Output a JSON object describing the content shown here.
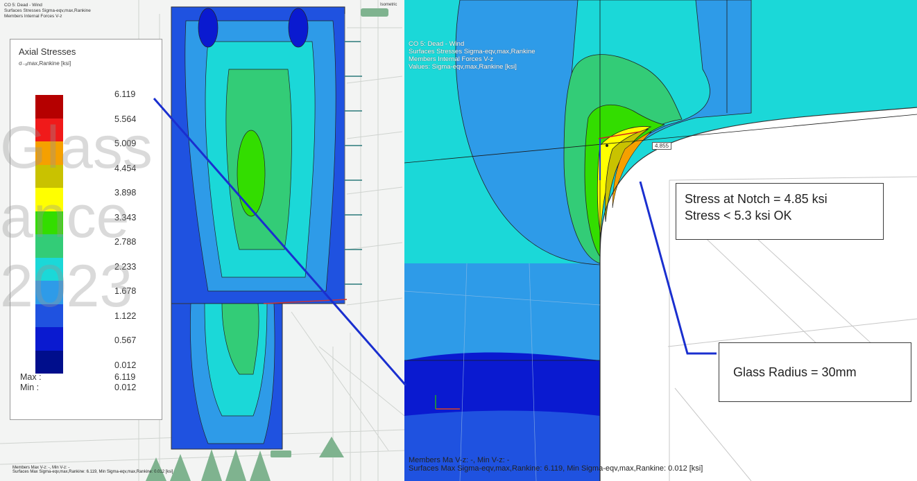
{
  "left_view": {
    "header_lines": [
      "CO 5: Dead - Wind",
      "Surfaces Stresses Sigma-eqv,max,Rankine",
      "Members Internal Forces V-z"
    ],
    "corner_label": "Isometric",
    "footer_lines": [
      "Members Max V-z: -, Min V-z: -",
      "Surfaces Max Sigma-eqv,max,Rankine: 6.119, Min Sigma-eqv,max,Rankine: 0.012 [ksi]"
    ]
  },
  "legend": {
    "title": "Axial Stresses",
    "subtitle": "σ₋ₐmax,Rankine [ksi]",
    "ticks": [
      "6.119",
      "5.564",
      "5.009",
      "4.454",
      "3.898",
      "3.343",
      "2.788",
      "2.233",
      "1.678",
      "1.122",
      "0.567",
      "0.012"
    ],
    "colors": [
      "#b50000",
      "#f01a1a",
      "#f5a000",
      "#c9c200",
      "#ffff00",
      "#33dd00",
      "#33cc77",
      "#1bd8d8",
      "#2e9be8",
      "#1f52e0",
      "#0a1ad0",
      "#000e8c"
    ],
    "max_label": "Max :",
    "min_label": "Min :",
    "max_value": "6.119",
    "min_value": "0.012"
  },
  "right_view": {
    "header_lines": [
      "CO 5: Dead - Wind",
      "Surfaces Stresses Sigma-eqv,max,Rankine",
      "Members Internal Forces V-z",
      "Values: Sigma-eqv,max,Rankine [ksi]"
    ],
    "probe_value": "4.855",
    "footer_lines": [
      "Members Ma  V-z: -, Min V-z: -",
      "Surfaces Max Sigma-eqv,max,Rankine: 6.119, Min Sigma-eqv,max,Rankine: 0.012 [ksi]"
    ]
  },
  "callouts": {
    "stress_line1": "Stress at Notch = 4.85 ksi",
    "stress_line2": "Stress < 5.3 ksi OK",
    "radius": "Glass Radius = 30mm"
  },
  "watermark": {
    "line1": "Glass",
    "line2": "ance",
    "line3": "2023"
  }
}
